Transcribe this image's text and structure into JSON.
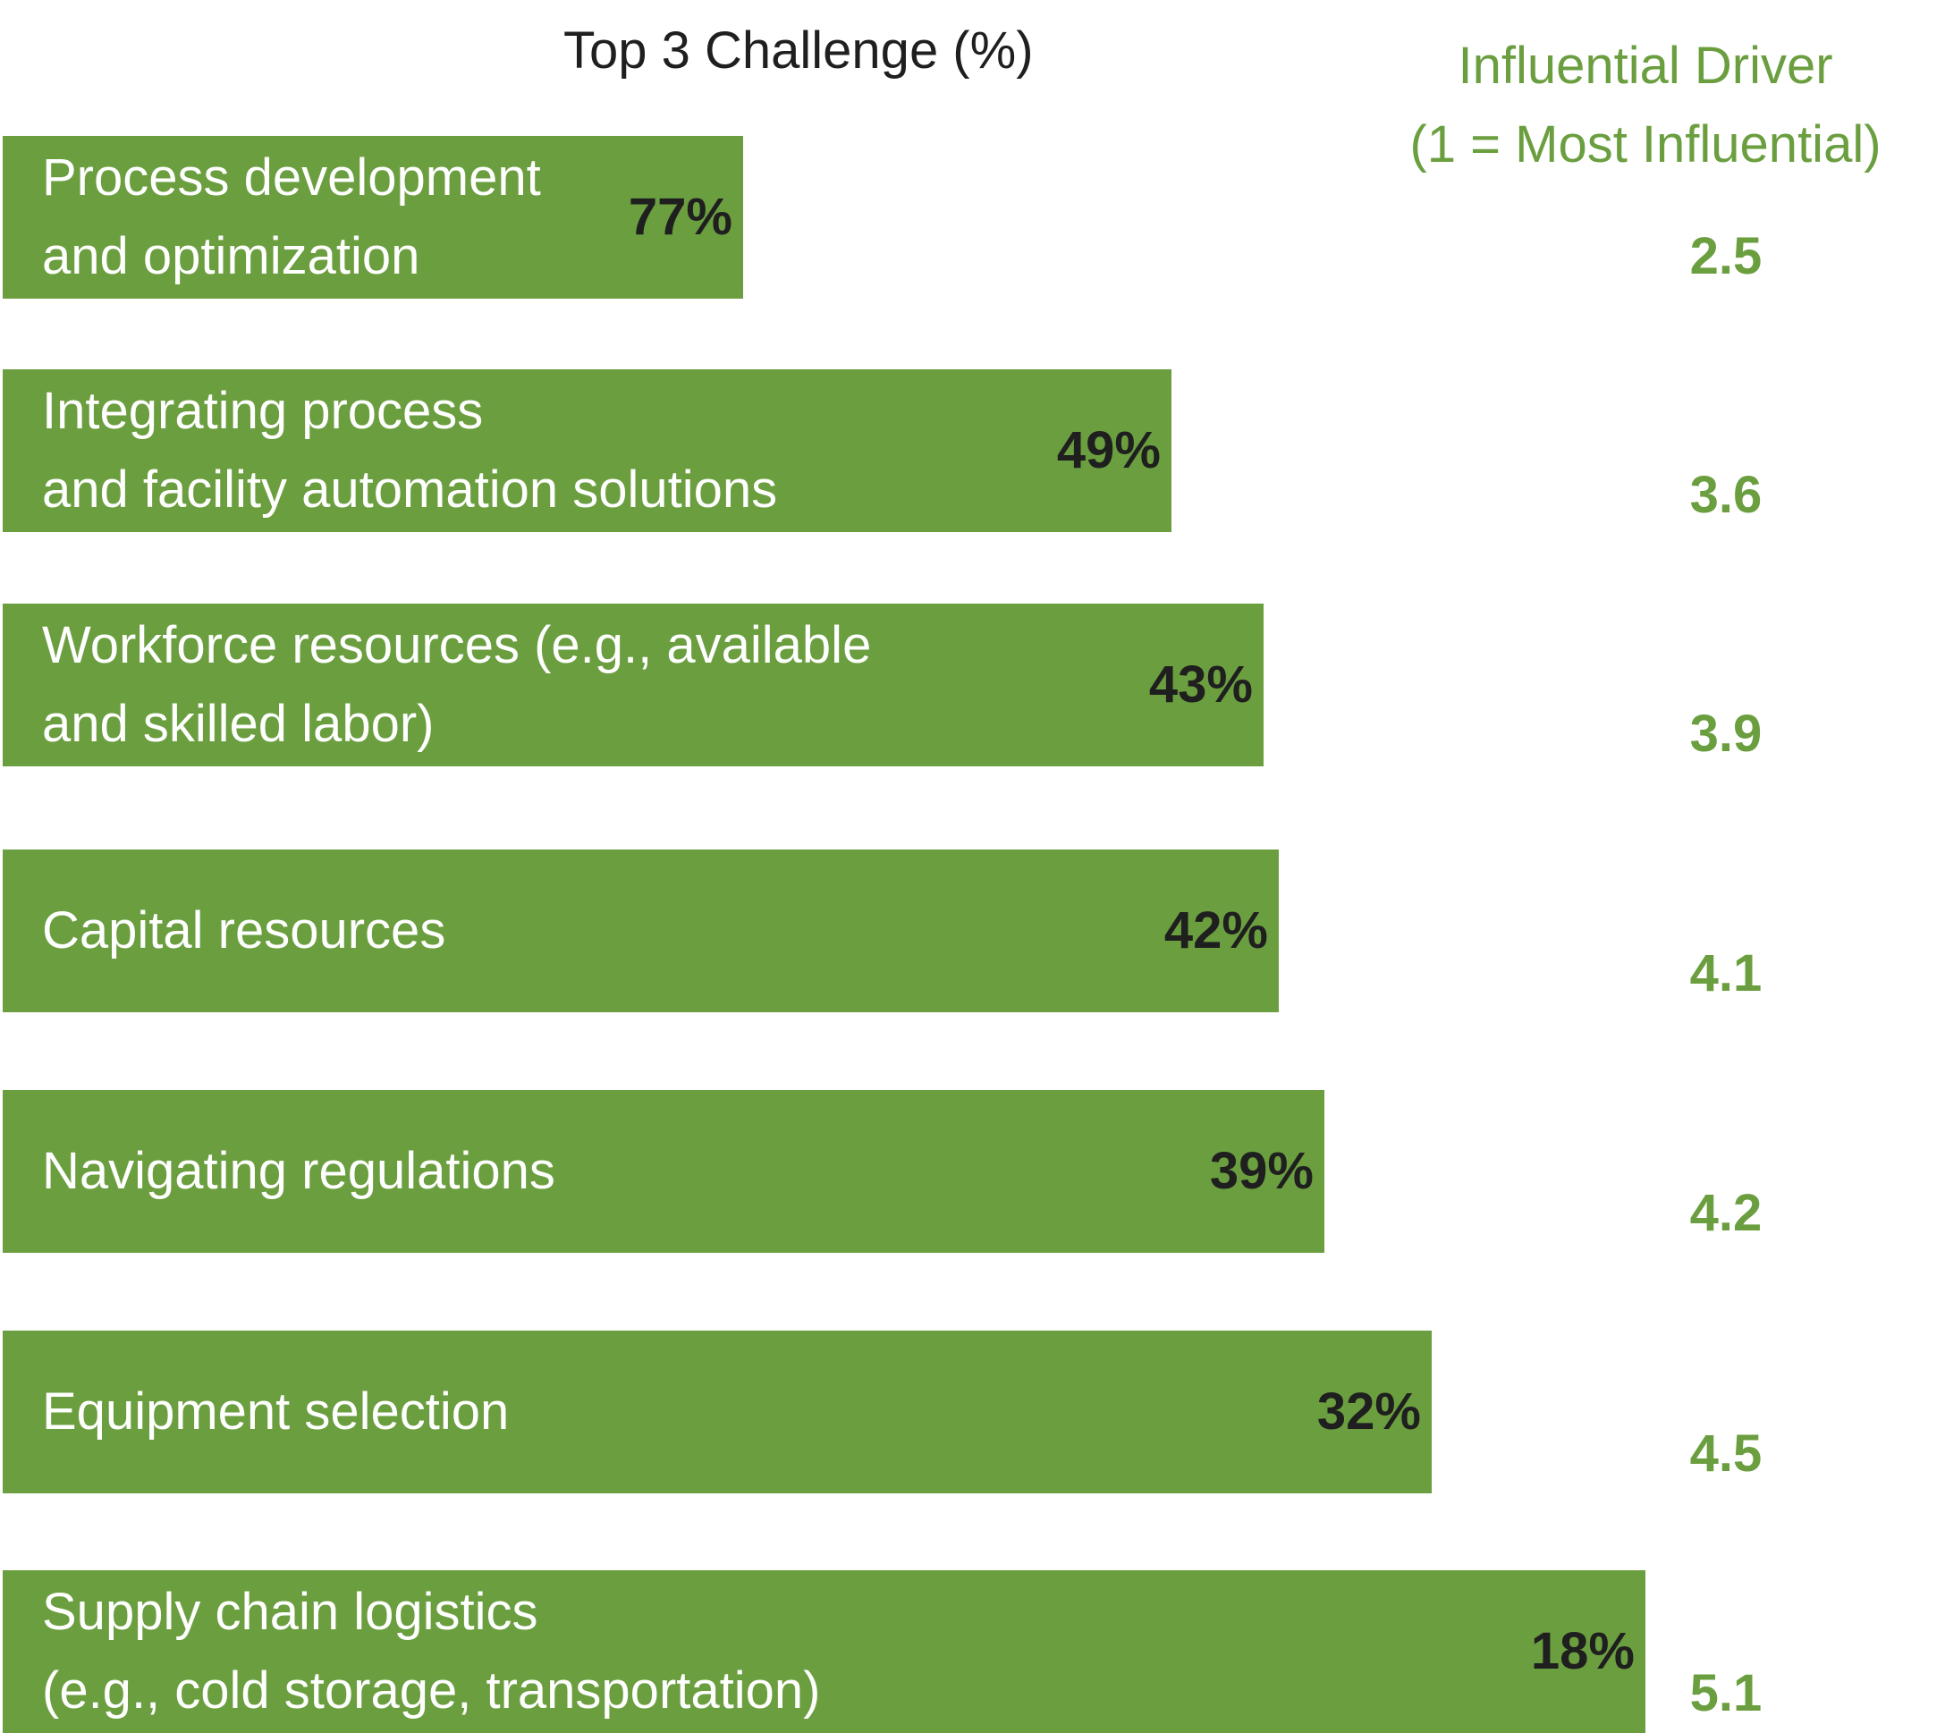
{
  "chart_data": {
    "type": "bar",
    "orientation": "horizontal",
    "title": "Top 3 Challenge (%)",
    "secondary_title": [
      "Influential Driver",
      "(1 = Most Influential)"
    ],
    "unit": "%",
    "categories": [
      [
        "Process development",
        "and optimization"
      ],
      [
        "Integrating process",
        "and facility automation solutions"
      ],
      [
        "Workforce resources (e.g., available",
        "and skilled labor)"
      ],
      [
        "Capital resources"
      ],
      [
        "Navigating regulations"
      ],
      [
        "Equipment selection"
      ],
      [
        "Supply chain logistics",
        "(e.g., cold storage, transportation)"
      ]
    ],
    "series": [
      {
        "name": "Top 3 Challenge (%)",
        "values": [
          77,
          49,
          43,
          42,
          39,
          32,
          18
        ],
        "labels": [
          "77%",
          "49%",
          "43%",
          "42%",
          "39%",
          "32%",
          "18%"
        ]
      },
      {
        "name": "Influential Driver",
        "values": [
          2.5,
          3.6,
          3.9,
          4.1,
          4.2,
          4.5,
          5.1
        ],
        "labels": [
          "2.5",
          "3.6",
          "3.9",
          "4.1",
          "4.2",
          "4.5",
          "5.1"
        ]
      }
    ],
    "bar_color": "#6a9e3f",
    "driver_color": "#6a9e3f"
  }
}
